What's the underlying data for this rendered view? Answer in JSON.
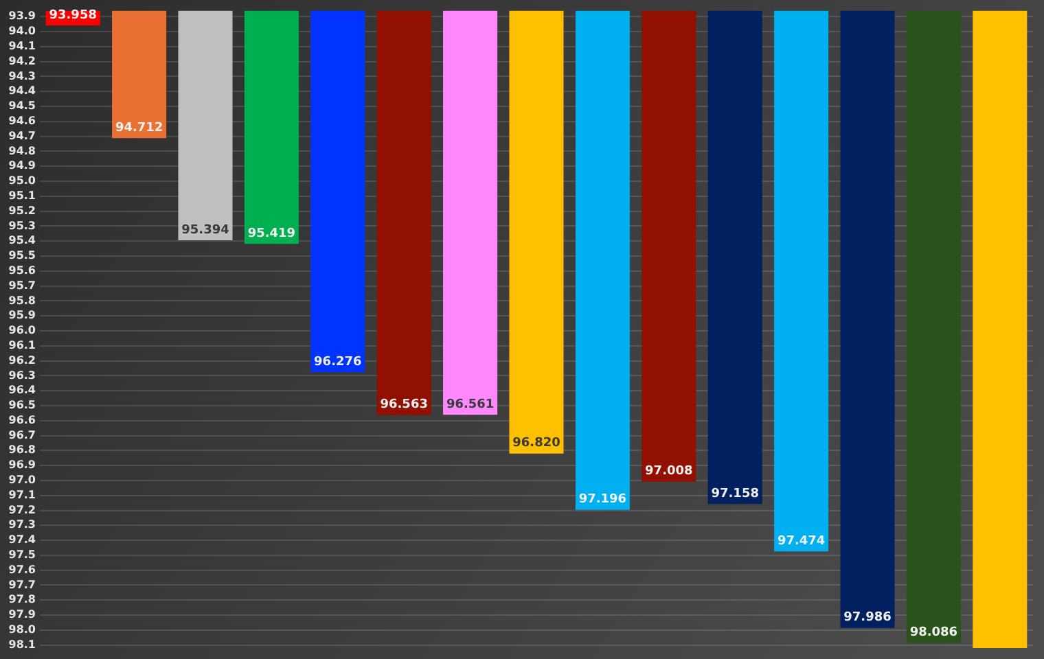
{
  "chart_data": {
    "type": "bar",
    "categories": [
      null,
      null,
      null,
      null,
      null,
      null,
      null,
      null,
      null,
      null,
      null,
      null,
      null,
      null,
      null
    ],
    "values": [
      93.958,
      94.712,
      95.394,
      95.419,
      96.276,
      96.563,
      96.561,
      96.82,
      97.196,
      97.008,
      97.158,
      97.474,
      97.986,
      98.086,
      98.12
    ],
    "colors": [
      "#ff0000",
      "#e87033",
      "#bfbfbf",
      "#00b050",
      "#0033ff",
      "#911000",
      "#ff88ff",
      "#ffc000",
      "#00b0f0",
      "#911000",
      "#002060",
      "#00b0f0",
      "#002060",
      "#29531a",
      "#ffc000"
    ],
    "value_labels": [
      "93.958",
      "94.712",
      "95.394",
      "95.419",
      "96.276",
      "96.563",
      "96.561",
      "96.820",
      "97.196",
      "97.008",
      "97.158",
      "97.474",
      "97.986",
      "98.086",
      null
    ],
    "ylim": [
      98.12,
      93.86
    ],
    "yticks": [
      {
        "value": 93.9,
        "label": "93.9"
      },
      {
        "value": 94.0,
        "label": "94.0"
      },
      {
        "value": 94.1,
        "label": "94.1"
      },
      {
        "value": 94.2,
        "label": "94.2"
      },
      {
        "value": 94.3,
        "label": "94.3"
      },
      {
        "value": 94.4,
        "label": "94.4"
      },
      {
        "value": 94.5,
        "label": "94.5"
      },
      {
        "value": 94.6,
        "label": "94.6"
      },
      {
        "value": 94.7,
        "label": "94.7"
      },
      {
        "value": 94.8,
        "label": "94.8"
      },
      {
        "value": 94.9,
        "label": "94.9"
      },
      {
        "value": 95.0,
        "label": "95.0"
      },
      {
        "value": 95.1,
        "label": "95.1"
      },
      {
        "value": 95.2,
        "label": "95.2"
      },
      {
        "value": 95.3,
        "label": "95.3"
      },
      {
        "value": 95.4,
        "label": "95.4"
      },
      {
        "value": 95.5,
        "label": "95.5"
      },
      {
        "value": 95.6,
        "label": "95.6"
      },
      {
        "value": 95.7,
        "label": "95.7"
      },
      {
        "value": 95.8,
        "label": "95.8"
      },
      {
        "value": 95.9,
        "label": "95.9"
      },
      {
        "value": 96.0,
        "label": "96.0"
      },
      {
        "value": 96.1,
        "label": "96.1"
      },
      {
        "value": 96.2,
        "label": "96.2"
      },
      {
        "value": 96.3,
        "label": "96.3"
      },
      {
        "value": 96.4,
        "label": "96.4"
      },
      {
        "value": 96.5,
        "label": "96.5"
      },
      {
        "value": 96.6,
        "label": "96.6"
      },
      {
        "value": 96.7,
        "label": "96.7"
      },
      {
        "value": 96.8,
        "label": "96.8"
      },
      {
        "value": 96.9,
        "label": "96.9"
      },
      {
        "value": 97.0,
        "label": "97.0"
      },
      {
        "value": 97.1,
        "label": "97.1"
      },
      {
        "value": 97.2,
        "label": "97.2"
      },
      {
        "value": 97.3,
        "label": "97.3"
      },
      {
        "value": 97.4,
        "label": "97.4"
      },
      {
        "value": 97.5,
        "label": "97.5"
      },
      {
        "value": 97.6,
        "label": "97.6"
      },
      {
        "value": 97.7,
        "label": "97.7"
      },
      {
        "value": 97.8,
        "label": "97.8"
      },
      {
        "value": 97.9,
        "label": "97.9"
      },
      {
        "value": 98.0,
        "label": "98.0"
      },
      {
        "value": 98.1,
        "label": "98.1"
      }
    ],
    "grid": "y",
    "legend": false
  }
}
